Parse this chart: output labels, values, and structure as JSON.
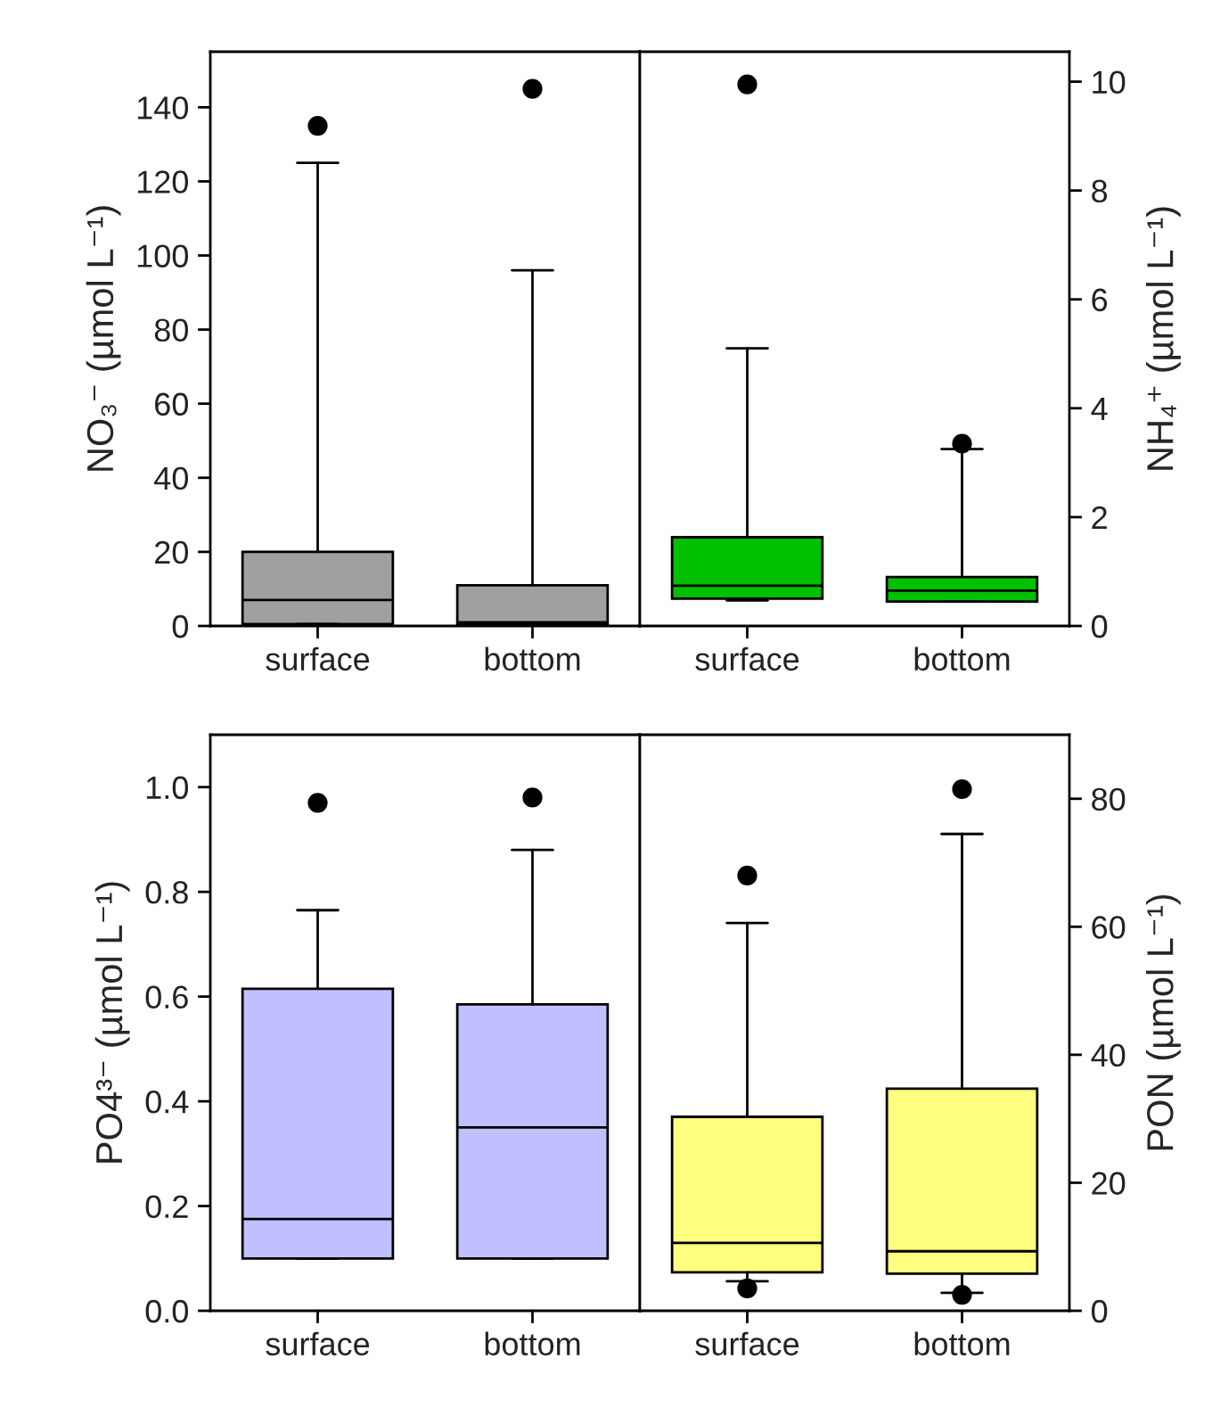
{
  "chart_data": [
    {
      "type": "box",
      "categories": [
        "surface",
        "bottom"
      ],
      "ylabel": "NO₃⁻ (µmol L⁻¹)",
      "ylim": [
        0,
        155
      ],
      "yticks": [
        0,
        20,
        40,
        60,
        80,
        100,
        120,
        140
      ],
      "series": [
        {
          "color": "#a0a0a0",
          "boxes": [
            {
              "low": 0.5,
              "q1": 0.5,
              "median": 7,
              "q3": 20,
              "high": 125,
              "outliers": [
                135
              ]
            },
            {
              "low": 0.5,
              "q1": 0.5,
              "median": 1,
              "q3": 11,
              "high": 96,
              "outliers": [
                145
              ]
            }
          ]
        }
      ]
    },
    {
      "type": "box",
      "categories": [
        "surface",
        "bottom"
      ],
      "y2label": "NH₄⁺ (µmol L⁻¹)",
      "y2lim": [
        0,
        10.55
      ],
      "y2ticks": [
        0,
        2,
        4,
        6,
        8,
        10
      ],
      "series": [
        {
          "color": "#00c000",
          "axis": "y2",
          "boxes": [
            {
              "low": 0.47,
              "q1": 0.5,
              "median": 0.74,
              "q3": 1.63,
              "high": 5.1,
              "outliers": [
                9.95
              ]
            },
            {
              "low": 0.45,
              "q1": 0.45,
              "median": 0.65,
              "q3": 0.9,
              "high": 3.25,
              "outliers": [
                3.35
              ]
            }
          ]
        }
      ]
    },
    {
      "type": "box",
      "categories": [
        "surface",
        "bottom"
      ],
      "ylabel": "PO4³⁻ (µmol L⁻¹)",
      "ylim": [
        0,
        1.1
      ],
      "yticks": [
        {
          "value": 0,
          "label": "0.0"
        },
        0.2,
        0.4,
        0.6,
        0.8,
        {
          "value": 1,
          "label": "1.0"
        }
      ],
      "series": [
        {
          "color": "#c0c0ff",
          "boxes": [
            {
              "low": 0.1,
              "q1": 0.1,
              "median": 0.175,
              "q3": 0.615,
              "high": 0.765,
              "outliers": [
                0.97
              ]
            },
            {
              "low": 0.1,
              "q1": 0.1,
              "median": 0.35,
              "q3": 0.585,
              "high": 0.88,
              "outliers": [
                0.98
              ]
            }
          ]
        }
      ]
    },
    {
      "type": "box",
      "categories": [
        "surface",
        "bottom"
      ],
      "y2label": "PON (µmol L⁻¹)",
      "y2lim": [
        0,
        90
      ],
      "y2ticks": [
        0,
        20,
        40,
        60,
        80
      ],
      "series": [
        {
          "color": "#ffff80",
          "axis": "y2",
          "boxes": [
            {
              "low": 4.6,
              "q1": 6,
              "median": 10.6,
              "q3": 30.3,
              "high": 60.6,
              "outliers": [
                68,
                3.5
              ]
            },
            {
              "low": 2.8,
              "q1": 5.8,
              "median": 9.3,
              "q3": 34.7,
              "high": 74.5,
              "outliers": [
                81.5,
                2.5
              ]
            }
          ]
        }
      ]
    }
  ]
}
